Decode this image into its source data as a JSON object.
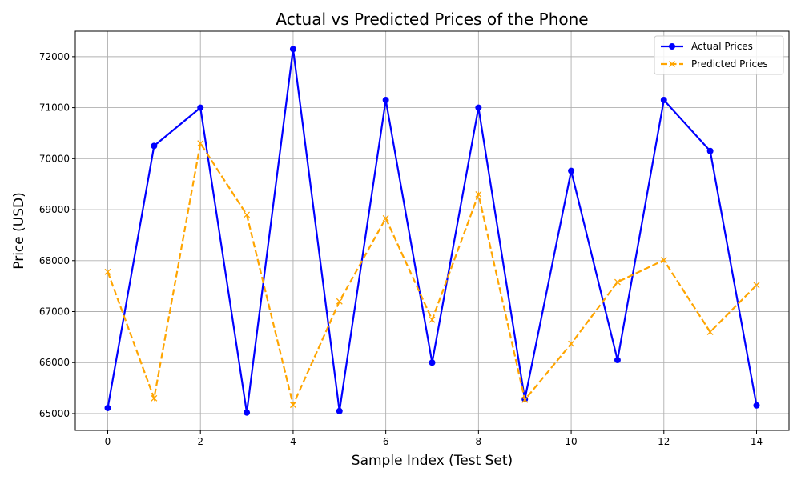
{
  "chart_data": {
    "type": "line",
    "title": "Actual vs Predicted Prices of the Phone",
    "xlabel": "Sample Index (Test Set)",
    "ylabel": "Price (USD)",
    "x": [
      0,
      1,
      2,
      3,
      4,
      5,
      6,
      7,
      8,
      9,
      10,
      11,
      12,
      13,
      14
    ],
    "xlim": [
      -0.7,
      14.7
    ],
    "ylim": [
      64670,
      72500
    ],
    "xticks": [
      0,
      2,
      4,
      6,
      8,
      10,
      12,
      14
    ],
    "yticks": [
      65000,
      66000,
      67000,
      68000,
      69000,
      70000,
      71000,
      72000
    ],
    "grid": true,
    "legend_position": "top-right",
    "series": [
      {
        "name": "Actual Prices",
        "color": "#0000ff",
        "marker": "circle",
        "linestyle": "solid",
        "values": [
          65110,
          70250,
          71000,
          65020,
          72150,
          65050,
          71150,
          66000,
          71000,
          65280,
          69760,
          66050,
          71150,
          70150,
          65160
        ]
      },
      {
        "name": "Predicted Prices",
        "color": "#ffa500",
        "marker": "x",
        "linestyle": "dashed",
        "values": [
          67780,
          65300,
          70300,
          68900,
          65170,
          67200,
          68830,
          66840,
          69300,
          65270,
          66370,
          67580,
          68010,
          66600,
          67520
        ]
      }
    ]
  }
}
